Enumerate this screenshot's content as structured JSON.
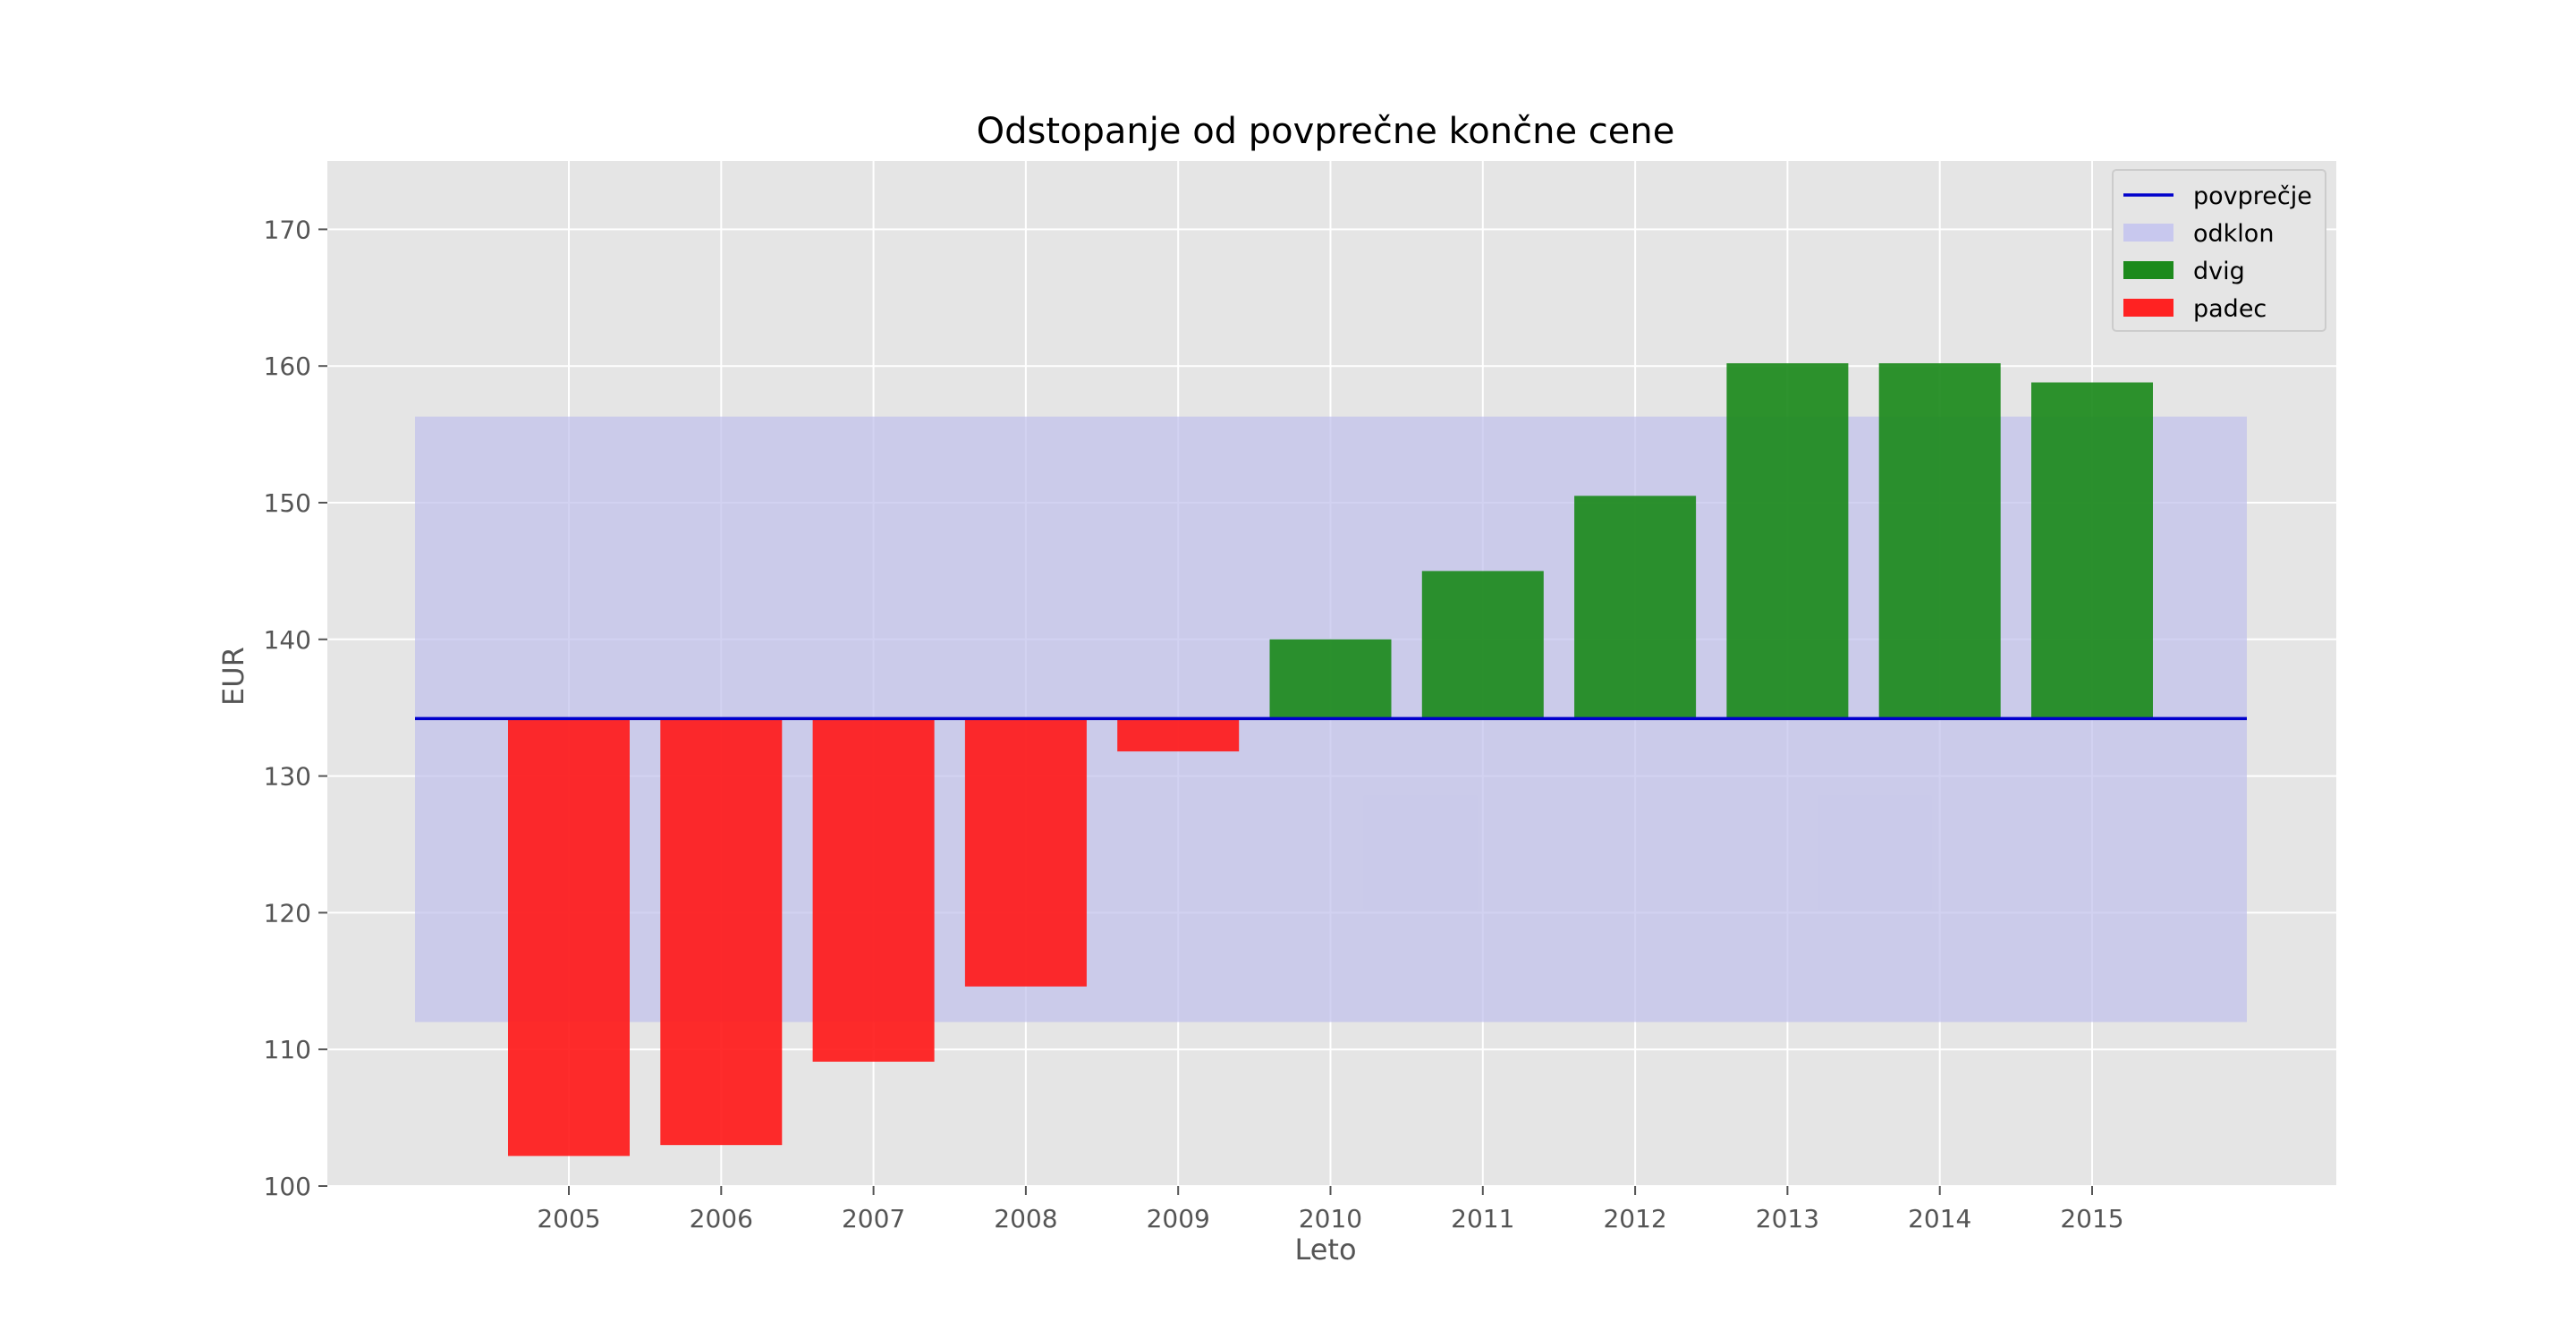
{
  "chart_data": {
    "type": "bar",
    "title": "Odstopanje od povprečne končne cene",
    "xlabel": "Leto",
    "ylabel": "EUR",
    "categories": [
      "2005",
      "2006",
      "2007",
      "2008",
      "2009",
      "2010",
      "2011",
      "2012",
      "2013",
      "2014",
      "2015"
    ],
    "values": [
      102.2,
      103.0,
      109.1,
      114.6,
      131.8,
      140.0,
      145.0,
      150.5,
      160.2,
      160.2,
      158.8
    ],
    "mean": 134.2,
    "band": [
      112.0,
      156.3
    ],
    "ylim": [
      100,
      175
    ],
    "yticks": [
      100,
      110,
      120,
      130,
      140,
      150,
      160,
      170
    ],
    "grid": true,
    "legend_position": "top-right",
    "colors": {
      "mean_line": "#0000cc",
      "band": "#c0c0ec",
      "rise": "#1c8a1c",
      "fall": "#ff1a1a",
      "plot_background": "#e5e5e5",
      "grid": "#ffffff"
    },
    "legend": [
      {
        "label": "povprečje",
        "kind": "line",
        "color": "#0000cc"
      },
      {
        "label": "odklon",
        "kind": "patch",
        "color": "#c8c8ee"
      },
      {
        "label": "dvig",
        "kind": "patch",
        "color": "#1c8a1c"
      },
      {
        "label": "padec",
        "kind": "patch",
        "color": "#ff2222"
      }
    ]
  }
}
